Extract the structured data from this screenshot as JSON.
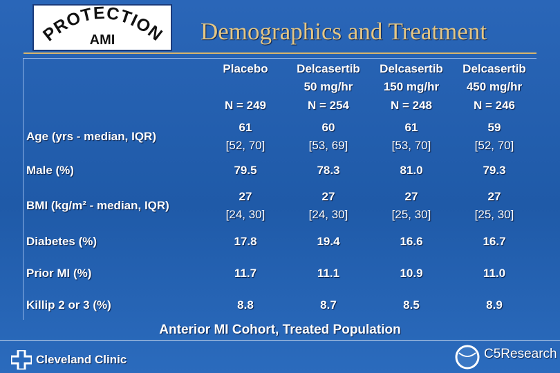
{
  "logo": {
    "arc": "PROTECTION",
    "sub": "AMI"
  },
  "title": "Demographics and Treatment",
  "table": {
    "columns": [
      [
        "Placebo",
        "N = 249"
      ],
      [
        "Delcasertib",
        "50 mg/hr",
        "N = 254"
      ],
      [
        "Delcasertib",
        "150 mg/hr",
        "N = 248"
      ],
      [
        "Delcasertib",
        "450 mg/hr",
        "N = 246"
      ]
    ],
    "rows": [
      {
        "label": "Age (yrs - median, IQR)",
        "cells": [
          [
            "61",
            "[52, 70]"
          ],
          [
            "60",
            "[53, 69]"
          ],
          [
            "61",
            "[53, 70]"
          ],
          [
            "59",
            "[52, 70]"
          ]
        ]
      },
      {
        "label": "Male (%)",
        "cells": [
          [
            "79.5"
          ],
          [
            "78.3"
          ],
          [
            "81.0"
          ],
          [
            "79.3"
          ]
        ]
      },
      {
        "label": "BMI (kg/m² - median, IQR)",
        "cells": [
          [
            "27",
            "[24, 30]"
          ],
          [
            "27",
            "[24, 30]"
          ],
          [
            "27",
            "[25, 30]"
          ],
          [
            "27",
            "[25, 30]"
          ]
        ]
      },
      {
        "label": "Diabetes (%)",
        "cells": [
          [
            "17.8"
          ],
          [
            "19.4"
          ],
          [
            "16.6"
          ],
          [
            "16.7"
          ]
        ]
      },
      {
        "label": "Prior MI (%)",
        "cells": [
          [
            "11.7"
          ],
          [
            "11.1"
          ],
          [
            "10.9"
          ],
          [
            "11.0"
          ]
        ]
      },
      {
        "label": "Killip 2 or 3 (%)",
        "cells": [
          [
            "8.8"
          ],
          [
            "8.7"
          ],
          [
            "8.5"
          ],
          [
            "8.9"
          ]
        ]
      }
    ]
  },
  "footnote": "Anterior MI Cohort, Treated Population",
  "footer": {
    "left": "Cleveland Clinic",
    "right": "C5Research"
  }
}
